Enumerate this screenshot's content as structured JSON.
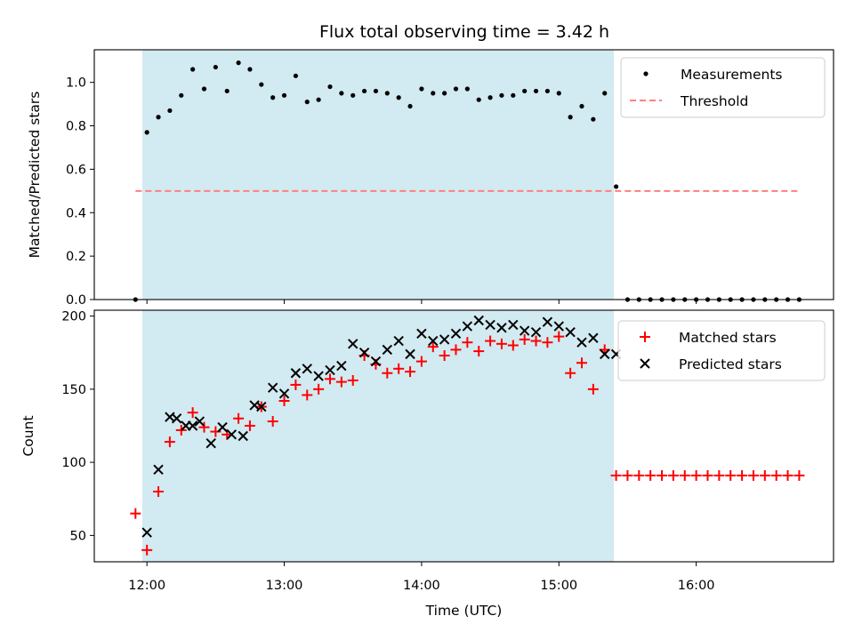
{
  "chart_data": [
    {
      "type": "scatter",
      "title": "Flux total observing time = 3.42 h",
      "xlabel": "",
      "ylabel": "Matched/Predicted stars",
      "ylim": [
        0,
        1.15
      ],
      "yticks": [
        "0.0",
        "0.2",
        "0.4",
        "0.6",
        "0.8",
        "1.0"
      ],
      "ytick_values": [
        0,
        0.2,
        0.4,
        0.6,
        0.8,
        1.0
      ],
      "shaded_region": {
        "start": "11:58",
        "end": "15:24",
        "color": "#add8e6"
      },
      "legend": {
        "placement": "top-right",
        "entries": [
          "Measurements",
          "Threshold"
        ]
      },
      "threshold": {
        "name": "Threshold",
        "value": 0.5,
        "from": "11:55",
        "to": "16:45",
        "color": "#ff7f7f"
      },
      "series": [
        {
          "name": "Measurements",
          "x": [
            "11:55",
            "12:00",
            "12:05",
            "12:10",
            "12:15",
            "12:20",
            "12:25",
            "12:30",
            "12:35",
            "12:40",
            "12:45",
            "12:50",
            "12:55",
            "13:00",
            "13:05",
            "13:10",
            "13:15",
            "13:20",
            "13:25",
            "13:30",
            "13:35",
            "13:40",
            "13:45",
            "13:50",
            "13:55",
            "14:00",
            "14:05",
            "14:10",
            "14:15",
            "14:20",
            "14:25",
            "14:30",
            "14:35",
            "14:40",
            "14:45",
            "14:50",
            "14:55",
            "15:00",
            "15:05",
            "15:10",
            "15:15",
            "15:20",
            "15:25",
            "15:30",
            "15:35",
            "15:40",
            "15:45",
            "15:50",
            "15:55",
            "16:00",
            "16:05",
            "16:10",
            "16:15",
            "16:20",
            "16:25",
            "16:30",
            "16:35",
            "16:40",
            "16:45"
          ],
          "y": [
            0.0,
            0.77,
            0.84,
            0.87,
            0.94,
            1.06,
            0.97,
            1.07,
            0.96,
            1.09,
            1.06,
            0.99,
            0.93,
            0.94,
            1.03,
            0.91,
            0.92,
            0.98,
            0.95,
            0.94,
            0.96,
            0.96,
            0.95,
            0.93,
            0.89,
            0.97,
            0.95,
            0.95,
            0.97,
            0.97,
            0.92,
            0.93,
            0.94,
            0.94,
            0.96,
            0.96,
            0.96,
            0.95,
            0.84,
            0.89,
            0.83,
            0.95,
            0.52,
            0.0,
            0.0,
            0.0,
            0.0,
            0.0,
            0.0,
            0.0,
            0.0,
            0.0,
            0.0,
            0.0,
            0.0,
            0.0,
            0.0,
            0.0,
            0.0
          ]
        }
      ]
    },
    {
      "type": "scatter",
      "title": "",
      "xlabel": "Time (UTC)",
      "ylabel": "Count",
      "ylim": [
        32,
        204
      ],
      "yticks": [
        "50",
        "100",
        "150",
        "200"
      ],
      "ytick_values": [
        50,
        100,
        150,
        200
      ],
      "xticks": [
        "12:00",
        "13:00",
        "14:00",
        "15:00",
        "16:00"
      ],
      "xlim": [
        "11:37",
        "17:00"
      ],
      "shaded_region": {
        "start": "11:58",
        "end": "15:24",
        "color": "#add8e6"
      },
      "legend": {
        "placement": "top-right",
        "entries": [
          "Matched stars",
          "Predicted stars"
        ]
      },
      "series": [
        {
          "name": "Matched stars",
          "marker": "plus",
          "color": "#ff0000",
          "x": [
            "11:55",
            "12:00",
            "12:05",
            "12:10",
            "12:15",
            "12:20",
            "12:25",
            "12:30",
            "12:35",
            "12:40",
            "12:45",
            "12:50",
            "12:55",
            "13:00",
            "13:05",
            "13:10",
            "13:15",
            "13:20",
            "13:25",
            "13:30",
            "13:35",
            "13:40",
            "13:45",
            "13:50",
            "13:55",
            "14:00",
            "14:05",
            "14:10",
            "14:15",
            "14:20",
            "14:25",
            "14:30",
            "14:35",
            "14:40",
            "14:45",
            "14:50",
            "14:55",
            "15:00",
            "15:05",
            "15:10",
            "15:15",
            "15:20",
            "15:25",
            "15:30",
            "15:35",
            "15:40",
            "15:45",
            "15:50",
            "15:55",
            "16:00",
            "16:05",
            "16:10",
            "16:15",
            "16:20",
            "16:25",
            "16:30",
            "16:35",
            "16:40",
            "16:45"
          ],
          "y": [
            65,
            40,
            80,
            114,
            122,
            134,
            124,
            121,
            119,
            130,
            125,
            138,
            128,
            142,
            153,
            146,
            150,
            157,
            155,
            156,
            173,
            167,
            161,
            164,
            162,
            169,
            179,
            173,
            177,
            182,
            176,
            183,
            181,
            180,
            184,
            183,
            182,
            186,
            161,
            168,
            150,
            177,
            91,
            91,
            91,
            91,
            91,
            91,
            91,
            91,
            91,
            91,
            91,
            91,
            91,
            91,
            91,
            91,
            91
          ]
        },
        {
          "name": "Predicted stars",
          "marker": "x",
          "color": "#000000",
          "x": [
            "12:00",
            "12:05",
            "12:10",
            "12:13",
            "12:17",
            "12:20",
            "12:23",
            "12:28",
            "12:33",
            "12:37",
            "12:42",
            "12:47",
            "12:50",
            "12:55",
            "13:00",
            "13:05",
            "13:10",
            "13:15",
            "13:20",
            "13:25",
            "13:30",
            "13:35",
            "13:40",
            "13:45",
            "13:50",
            "13:55",
            "14:00",
            "14:05",
            "14:10",
            "14:15",
            "14:20",
            "14:25",
            "14:30",
            "14:35",
            "14:40",
            "14:45",
            "14:50",
            "14:55",
            "15:00",
            "15:05",
            "15:10",
            "15:15",
            "15:20",
            "15:25"
          ],
          "y": [
            52,
            95,
            131,
            130,
            125,
            125,
            128,
            113,
            124,
            119,
            118,
            139,
            138,
            151,
            147,
            161,
            164,
            159,
            163,
            166,
            181,
            175,
            169,
            177,
            183,
            174,
            188,
            183,
            184,
            188,
            193,
            197,
            194,
            192,
            194,
            190,
            189,
            196,
            193,
            189,
            182,
            185,
            174,
            174
          ]
        }
      ]
    }
  ]
}
